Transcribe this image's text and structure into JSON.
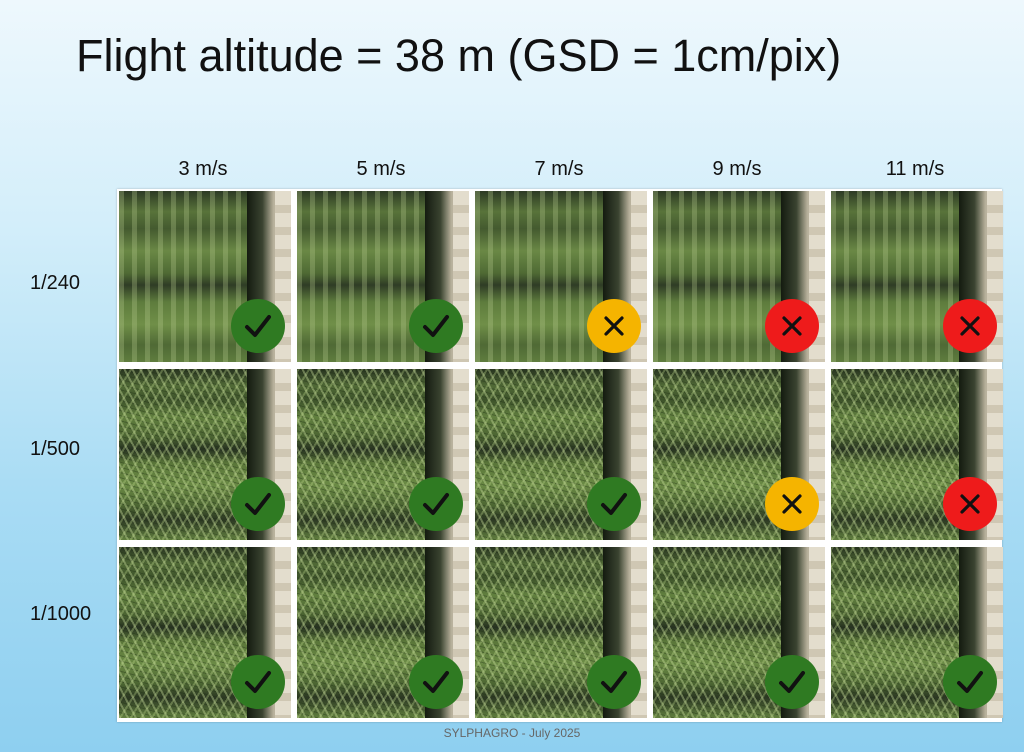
{
  "title": "Flight altitude = 38 m (GSD = 1cm/pix)",
  "speeds": [
    "3 m/s",
    "5 m/s",
    "7 m/s",
    "9 m/s",
    "11 m/s"
  ],
  "shutters": [
    "1/240",
    "1/500",
    "1/1000"
  ],
  "results": [
    [
      "ok",
      "ok",
      "warn",
      "bad",
      "bad"
    ],
    [
      "ok",
      "ok",
      "ok",
      "warn",
      "bad"
    ],
    [
      "ok",
      "ok",
      "ok",
      "ok",
      "ok"
    ]
  ],
  "colors": {
    "ok": "#2f7a22",
    "warn": "#f5b400",
    "bad": "#ee1b1b"
  },
  "icons": {
    "ok": "check-icon",
    "warn": "cross-icon",
    "bad": "cross-icon"
  },
  "footer": "SYLPHAGRO - July 2025"
}
